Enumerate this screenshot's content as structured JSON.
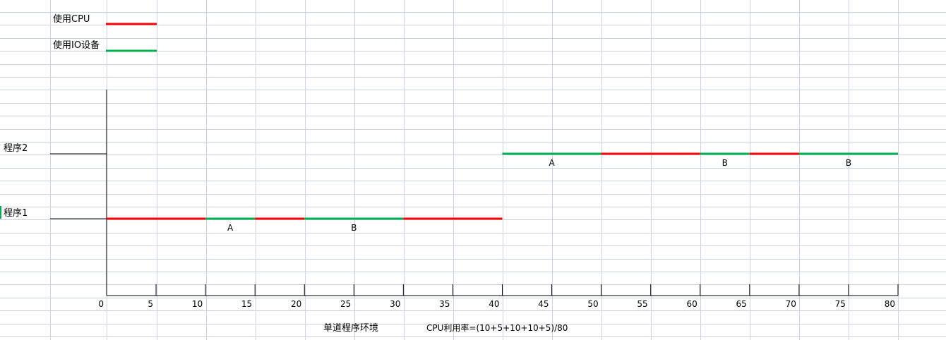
{
  "colors": {
    "cpu": "#ff0000",
    "io": "#00b050",
    "grid": "#c9d2e6",
    "axis": "#000000"
  },
  "legend": {
    "cpu_label": "使用CPU",
    "io_label": "使用IO设备"
  },
  "chart_data": {
    "type": "timeline",
    "xlim": [
      0,
      80
    ],
    "x_ticks": [
      0,
      5,
      10,
      15,
      20,
      25,
      30,
      35,
      40,
      45,
      50,
      55,
      60,
      65,
      70,
      75,
      80
    ],
    "grid": true,
    "legend_position": "top-left",
    "rows": [
      {
        "name": "程序1",
        "segments": [
          {
            "start": 0,
            "end": 10,
            "kind": "cpu",
            "label": ""
          },
          {
            "start": 10,
            "end": 15,
            "kind": "io",
            "label": "A"
          },
          {
            "start": 15,
            "end": 20,
            "kind": "cpu",
            "label": ""
          },
          {
            "start": 20,
            "end": 30,
            "kind": "io",
            "label": "B"
          },
          {
            "start": 30,
            "end": 40,
            "kind": "cpu",
            "label": ""
          }
        ]
      },
      {
        "name": "程序2",
        "segments": [
          {
            "start": 40,
            "end": 50,
            "kind": "io",
            "label": "A"
          },
          {
            "start": 50,
            "end": 60,
            "kind": "cpu",
            "label": ""
          },
          {
            "start": 60,
            "end": 65,
            "kind": "io",
            "label": "B"
          },
          {
            "start": 65,
            "end": 70,
            "kind": "cpu",
            "label": ""
          },
          {
            "start": 70,
            "end": 80,
            "kind": "io",
            "label": "B"
          }
        ]
      }
    ]
  },
  "footer": {
    "title": "单道程序环境",
    "formula": "CPU利用率=(10+5+10+10+5)/80"
  }
}
